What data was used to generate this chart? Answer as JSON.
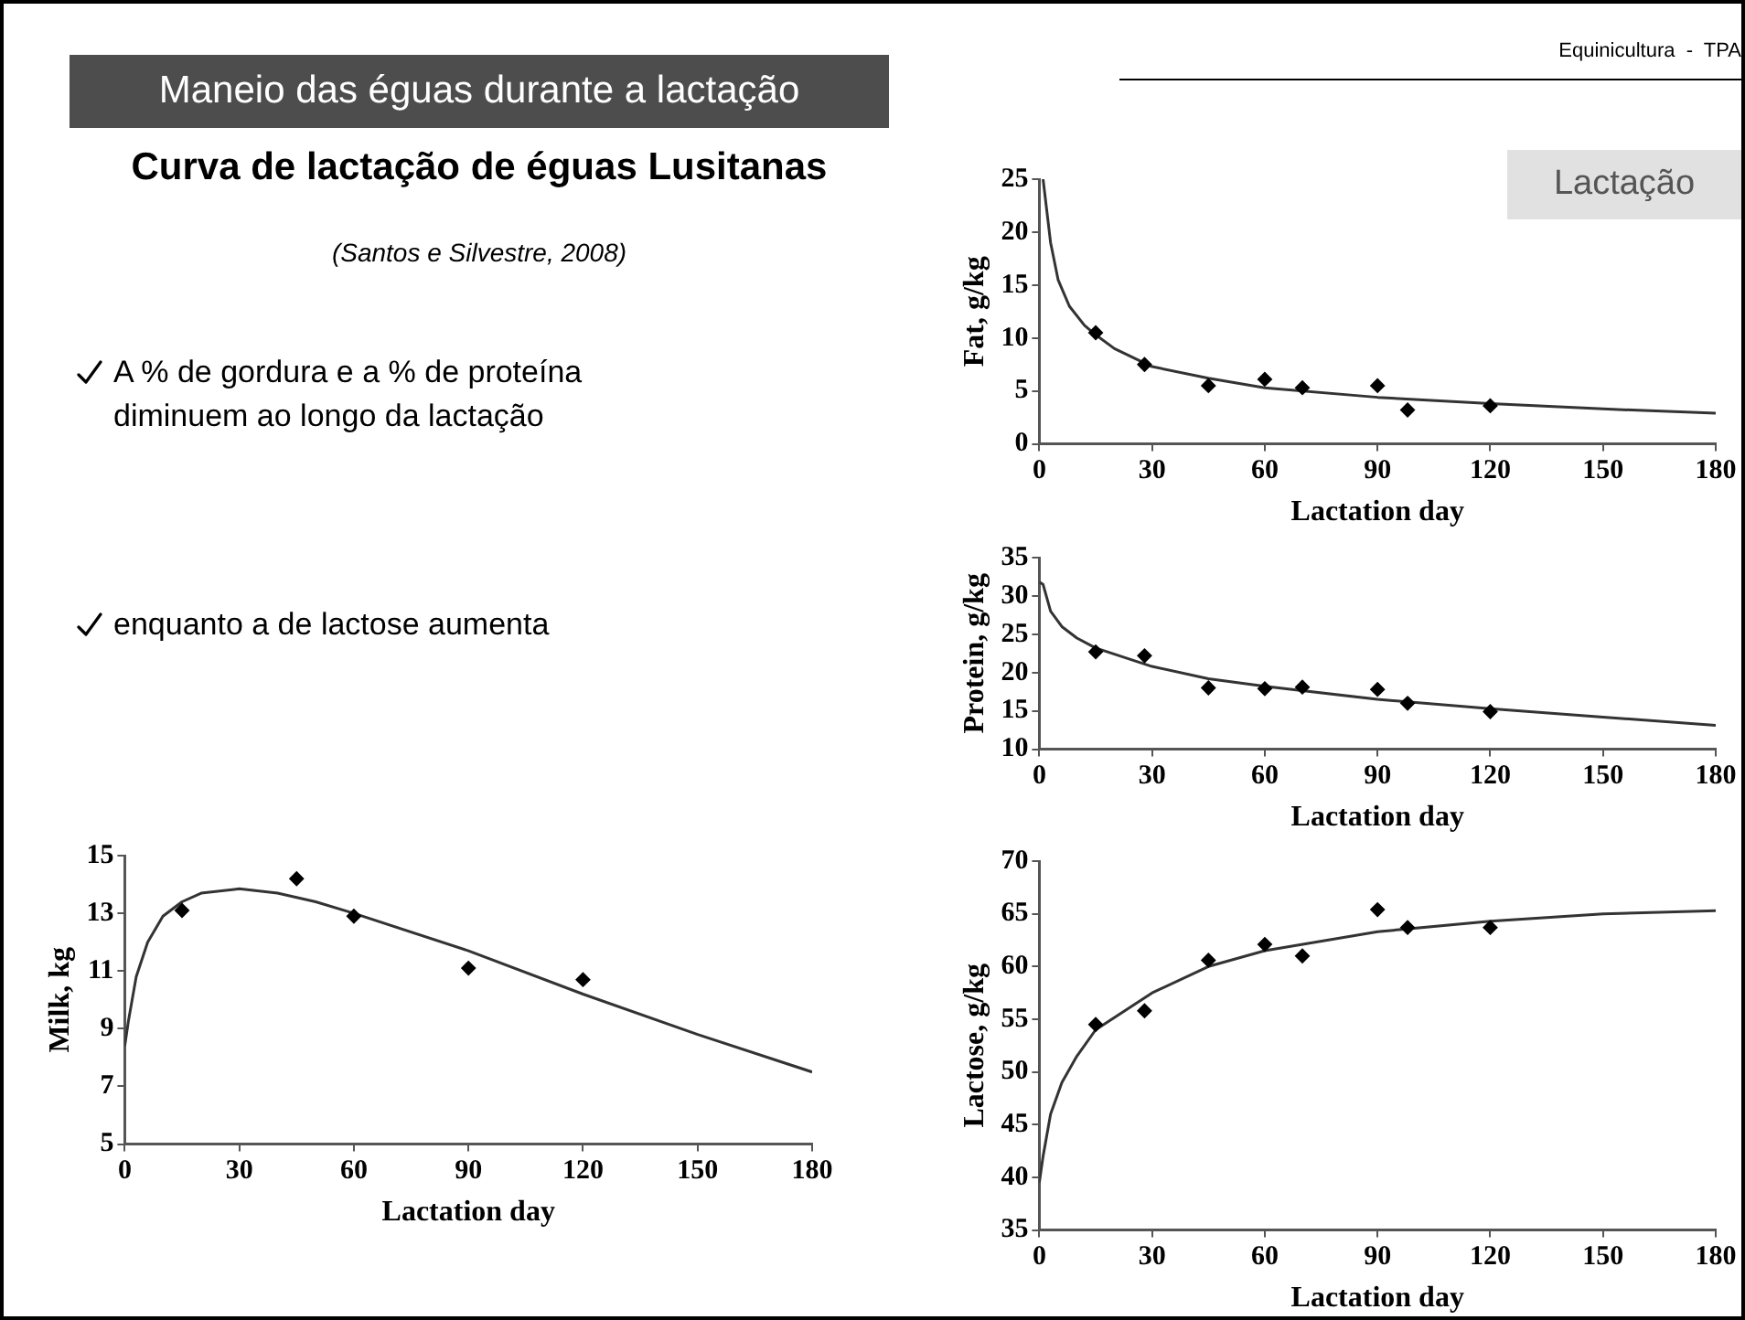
{
  "chart_data": [
    {
      "type": "other",
      "title": "Maneio das éguas durante a lactação",
      "subtitle": "Curva de lactação de éguas Lusitanas",
      "annotations": [
        "(Santos e Silvestre, 2008)",
        "A % de gordura e a % de proteína diminuem ao longo da lactação",
        "enquanto a de lactose aumenta",
        "Equinicultura  -  TPA",
        "Lactação"
      ]
    },
    {
      "type": "scatter",
      "xlabel": "Lactation day",
      "ylabel": "Fat, g/kg",
      "xlim": [
        0,
        180
      ],
      "xticks": [
        0,
        30,
        60,
        90,
        120,
        150,
        180
      ],
      "ylim": [
        0,
        25
      ],
      "yticks": [
        0,
        5,
        10,
        15,
        20,
        25
      ],
      "grid": false,
      "legend": false,
      "series": [
        {
          "color": "#000000",
          "marker": "diamond",
          "x": [
            15,
            28,
            45,
            60,
            70,
            90,
            98,
            120
          ],
          "values": [
            10.5,
            7.5,
            5.5,
            6.1,
            5.3,
            5.5,
            3.2,
            3.6
          ]
        },
        {
          "type": "line",
          "color": "#333333",
          "marker": "none",
          "x": [
            1,
            3,
            5,
            8,
            12,
            15,
            20,
            30,
            45,
            60,
            90,
            120,
            150,
            180
          ],
          "values": [
            25,
            19,
            15.5,
            13,
            11.2,
            10.3,
            9,
            7.3,
            6.2,
            5.3,
            4.4,
            3.8,
            3.3,
            2.9
          ]
        }
      ]
    },
    {
      "type": "scatter",
      "xlabel": "Lactation day",
      "ylabel": "Protein, g/kg",
      "xlim": [
        0,
        180
      ],
      "xticks": [
        0,
        30,
        60,
        90,
        120,
        150,
        180
      ],
      "ylim": [
        10,
        35
      ],
      "yticks": [
        10,
        15,
        20,
        25,
        30,
        35
      ],
      "grid": false,
      "legend": false,
      "series": [
        {
          "color": "#000000",
          "marker": "diamond",
          "x": [
            15,
            28,
            45,
            60,
            70,
            90,
            98,
            120
          ],
          "values": [
            22.7,
            22.2,
            18,
            17.9,
            18.1,
            17.8,
            16,
            14.9
          ]
        },
        {
          "type": "line",
          "color": "#333333",
          "marker": "none",
          "x": [
            0,
            1,
            3,
            6,
            10,
            15,
            30,
            45,
            60,
            90,
            120,
            150,
            180
          ],
          "values": [
            31.8,
            31.5,
            28,
            26,
            24.5,
            23.2,
            20.8,
            19.2,
            18.2,
            16.5,
            15.3,
            14.2,
            13.1
          ]
        }
      ]
    },
    {
      "type": "scatter",
      "xlabel": "Lactation day",
      "ylabel": "Milk, kg",
      "xlim": [
        0,
        180
      ],
      "xticks": [
        0,
        30,
        60,
        90,
        120,
        150,
        180
      ],
      "ylim": [
        5,
        15
      ],
      "yticks": [
        5,
        7,
        9,
        11,
        13,
        15
      ],
      "grid": false,
      "legend": false,
      "series": [
        {
          "color": "#000000",
          "marker": "diamond",
          "x": [
            15,
            45,
            60,
            90,
            120
          ],
          "values": [
            13.1,
            14.2,
            12.9,
            11.1,
            10.7
          ]
        },
        {
          "type": "line",
          "color": "#333333",
          "marker": "none",
          "x": [
            0,
            1,
            3,
            6,
            10,
            15,
            20,
            30,
            40,
            50,
            60,
            90,
            120,
            150,
            180
          ],
          "values": [
            8.4,
            9.3,
            10.8,
            12,
            12.9,
            13.4,
            13.7,
            13.85,
            13.7,
            13.4,
            13,
            11.7,
            10.2,
            8.8,
            7.5
          ]
        }
      ]
    },
    {
      "type": "scatter",
      "xlabel": "Lactation day",
      "ylabel": "Lactose, g/kg",
      "xlim": [
        0,
        180
      ],
      "xticks": [
        0,
        30,
        60,
        90,
        120,
        150,
        180
      ],
      "ylim": [
        35,
        70
      ],
      "yticks": [
        35,
        40,
        45,
        50,
        55,
        60,
        65,
        70
      ],
      "grid": false,
      "legend": false,
      "series": [
        {
          "color": "#000000",
          "marker": "diamond",
          "x": [
            15,
            28,
            45,
            60,
            70,
            90,
            98,
            120
          ],
          "values": [
            54.5,
            55.8,
            60.6,
            62.1,
            61,
            65.4,
            63.7,
            63.7
          ]
        },
        {
          "type": "line",
          "color": "#333333",
          "marker": "none",
          "x": [
            0,
            1,
            3,
            6,
            10,
            15,
            30,
            45,
            60,
            90,
            120,
            150,
            180
          ],
          "values": [
            39.5,
            42,
            46,
            49,
            51.5,
            54,
            57.5,
            60,
            61.5,
            63.3,
            64.3,
            65,
            65.3
          ]
        }
      ]
    }
  ]
}
